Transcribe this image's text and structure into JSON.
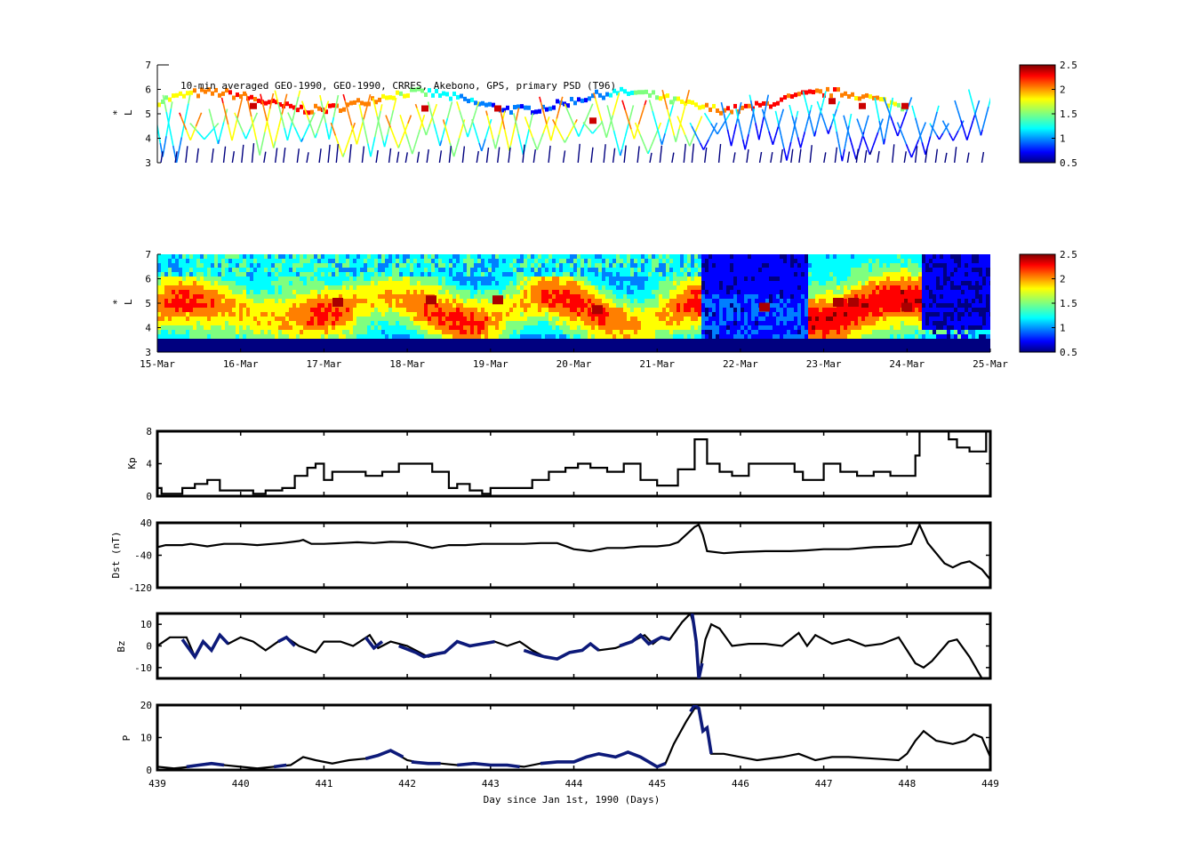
{
  "figure": {
    "title": "10-min averaged GEO-1990, GEO-1990, CRRES, Akebono, GPS, primary PSD (T96)",
    "xlabel": "Day since Jan 1st, 1990 (Days)"
  },
  "colors": {
    "axis": "#000000",
    "trace": "#000000",
    "highlight": "#0d1a7a",
    "colormap": [
      "#00007f",
      "#0000ff",
      "#007fff",
      "#00ffff",
      "#7fff7f",
      "#ffff00",
      "#ff7f00",
      "#ff0000",
      "#7f0000"
    ]
  },
  "colorbar": {
    "min": 0.5,
    "max": 2.5,
    "ticks": [
      "2.5",
      "2",
      "1.5",
      "1",
      "0.5"
    ]
  },
  "chart_data": [
    {
      "id": "psd-obs",
      "type": "heatmap",
      "title": "10-min averaged GEO-1990, GEO-1990, CRRES, Akebono, GPS, primary PSD (T96)",
      "ylabel": "L*",
      "ylabel_main": "L",
      "ylabel_sup": "*",
      "ylim": [
        3,
        7
      ],
      "yticks": [
        "7",
        "6",
        "5",
        "4",
        "3"
      ],
      "note": "sparse satellite-track observations of PSD, color scale 0.5-2.5"
    },
    {
      "id": "psd-assim",
      "type": "heatmap",
      "ylabel": "L*",
      "ylabel_main": "L",
      "ylabel_sup": "*",
      "ylim": [
        3,
        7
      ],
      "yticks": [
        "7",
        "6",
        "5",
        "4",
        "3"
      ],
      "xticks": [
        "15-Mar",
        "16-Mar",
        "17-Mar",
        "18-Mar",
        "19-Mar",
        "20-Mar",
        "21-Mar",
        "22-Mar",
        "23-Mar",
        "24-Mar",
        "25-Mar"
      ],
      "note": "full PSD map, color scale 0.5-2.5"
    },
    {
      "id": "kp",
      "type": "line",
      "ylabel": "Kp",
      "ylim": [
        0,
        8
      ],
      "yticks": [
        "8",
        "4",
        "0"
      ],
      "xlim": [
        439,
        449
      ],
      "series": [
        {
          "x": [
            439.0,
            439.05,
            439.15,
            439.3,
            439.45,
            439.6,
            439.75,
            440.0,
            440.15,
            440.3,
            440.5,
            440.65,
            440.8,
            440.9,
            441.0,
            441.1,
            441.3,
            441.5,
            441.7,
            441.9,
            442.1,
            442.3,
            442.5,
            442.6,
            442.75,
            442.9,
            443.0,
            443.1,
            443.3,
            443.5,
            443.7,
            443.9,
            444.05,
            444.2,
            444.4,
            444.6,
            444.8,
            445.0,
            445.1,
            445.25,
            445.45,
            445.6,
            445.75,
            445.9,
            446.1,
            446.3,
            446.5,
            446.65,
            446.75,
            446.85,
            447.0,
            447.2,
            447.4,
            447.6,
            447.8,
            448.0,
            448.1,
            448.15,
            448.35,
            448.5,
            448.6,
            448.75,
            448.85,
            448.95,
            449.0
          ],
          "y": [
            1,
            0.3,
            0.3,
            1,
            1.5,
            2,
            0.7,
            0.7,
            0.3,
            0.7,
            1,
            2.5,
            3.5,
            4,
            2,
            3,
            3,
            2.5,
            3,
            4,
            4,
            3,
            1,
            1.5,
            0.7,
            0.3,
            1,
            1,
            1,
            2,
            3,
            3.5,
            4,
            3.5,
            3,
            4,
            2,
            1.3,
            1.3,
            3.3,
            7,
            4,
            3,
            2.5,
            4,
            4,
            4,
            3,
            2,
            2,
            4,
            3,
            2.5,
            3,
            2.5,
            2.5,
            5,
            8,
            8,
            7,
            6,
            5.5,
            5.5,
            8,
            8
          ]
        }
      ]
    },
    {
      "id": "dst",
      "type": "line",
      "ylabel": "Dst (nT)",
      "ylim": [
        -120,
        40
      ],
      "yticks": [
        "40",
        "-40",
        "-120"
      ],
      "xlim": [
        439,
        449
      ],
      "series": [
        {
          "x": [
            439.0,
            439.1,
            439.3,
            439.4,
            439.6,
            439.8,
            440.0,
            440.2,
            440.5,
            440.7,
            440.75,
            440.85,
            441.0,
            441.2,
            441.4,
            441.6,
            441.8,
            442.0,
            442.1,
            442.3,
            442.5,
            442.7,
            442.9,
            443.1,
            443.4,
            443.6,
            443.8,
            444.0,
            444.2,
            444.4,
            444.6,
            444.8,
            445.0,
            445.15,
            445.25,
            445.45,
            445.5,
            445.55,
            445.6,
            445.8,
            446.0,
            446.3,
            446.6,
            446.8,
            447.0,
            447.3,
            447.6,
            447.9,
            448.05,
            448.15,
            448.25,
            448.45,
            448.55,
            448.65,
            448.75,
            448.9,
            449.0
          ],
          "y": [
            -20,
            -15,
            -15,
            -12,
            -18,
            -12,
            -12,
            -15,
            -10,
            -5,
            -2,
            -12,
            -12,
            -10,
            -8,
            -10,
            -7,
            -8,
            -12,
            -22,
            -15,
            -15,
            -12,
            -12,
            -12,
            -10,
            -10,
            -25,
            -30,
            -22,
            -22,
            -18,
            -18,
            -15,
            -8,
            30,
            35,
            10,
            -30,
            -35,
            -32,
            -30,
            -30,
            -28,
            -25,
            -25,
            -20,
            -18,
            -12,
            35,
            -10,
            -60,
            -70,
            -60,
            -55,
            -75,
            -100
          ]
        }
      ]
    },
    {
      "id": "bz",
      "type": "line",
      "ylabel": "Bz",
      "ylim": [
        -15,
        15
      ],
      "yticks": [
        "10",
        "0",
        "-10"
      ],
      "xlim": [
        439,
        449
      ],
      "series": [
        {
          "x": [
            439.0,
            439.15,
            439.35,
            439.45,
            439.55,
            439.65,
            439.75,
            439.85,
            440.0,
            440.15,
            440.3,
            440.45,
            440.55,
            440.7,
            440.9,
            441.0,
            441.2,
            441.35,
            441.55,
            441.65,
            441.8,
            442.0,
            442.15,
            442.25,
            442.45,
            442.6,
            442.75,
            442.9,
            443.05,
            443.2,
            443.35,
            443.5,
            443.65,
            443.8,
            443.95,
            444.1,
            444.2,
            444.3,
            444.5,
            444.7,
            444.85,
            444.95,
            445.05,
            445.15,
            445.3,
            445.4,
            445.45,
            445.5,
            445.58,
            445.65,
            445.75,
            445.9,
            446.1,
            446.3,
            446.5,
            446.7,
            446.8,
            446.9,
            447.1,
            447.3,
            447.5,
            447.7,
            447.9,
            448.0,
            448.1,
            448.2,
            448.3,
            448.5,
            448.6,
            448.75,
            448.9
          ],
          "y": [
            0,
            4,
            4,
            -5,
            2,
            -2,
            5,
            1,
            4,
            2,
            -2,
            2,
            4,
            0,
            -3,
            2,
            2,
            0,
            5,
            -1,
            2,
            0,
            -3,
            -5,
            -3,
            2,
            0,
            1,
            2,
            0,
            2,
            -2,
            -5,
            -6,
            -3,
            -2,
            1,
            -2,
            -1,
            2,
            5,
            1,
            4,
            3,
            11,
            15,
            8,
            -15,
            3,
            10,
            8,
            0,
            1,
            1,
            0,
            6,
            0,
            5,
            1,
            3,
            0,
            1,
            4,
            -2,
            -8,
            -10,
            -7,
            2,
            3,
            -5,
            -15
          ]
        }
      ],
      "highlight": [
        {
          "x": [
            439.3,
            439.45,
            439.55,
            439.65,
            439.75,
            439.85
          ],
          "y": [
            3,
            -5,
            2,
            -2,
            5,
            1
          ]
        },
        {
          "x": [
            440.45,
            440.55,
            440.65
          ],
          "y": [
            2,
            4,
            0
          ]
        },
        {
          "x": [
            441.5,
            441.6,
            441.7
          ],
          "y": [
            4,
            -1,
            2
          ]
        },
        {
          "x": [
            441.9,
            442.1,
            442.2,
            442.3,
            442.45,
            442.6,
            442.75,
            442.9,
            443.05
          ],
          "y": [
            0,
            -3,
            -5,
            -4,
            -3,
            2,
            0,
            1,
            2
          ]
        },
        {
          "x": [
            443.4,
            443.55,
            443.65,
            443.8,
            443.95,
            444.1,
            444.2,
            444.3
          ],
          "y": [
            -2,
            -4,
            -5,
            -6,
            -3,
            -2,
            1,
            -2
          ]
        },
        {
          "x": [
            444.55,
            444.7,
            444.8,
            444.9,
            445.05,
            445.15
          ],
          "y": [
            0,
            2,
            5,
            1,
            4,
            3
          ]
        },
        {
          "x": [
            445.42,
            445.47,
            445.5,
            445.54
          ],
          "y": [
            15,
            2,
            -15,
            -8
          ]
        }
      ]
    },
    {
      "id": "p",
      "type": "line",
      "ylabel": "P",
      "ylim": [
        0,
        20
      ],
      "yticks": [
        "20",
        "10",
        "0"
      ],
      "xlim": [
        439,
        449
      ],
      "series": [
        {
          "x": [
            439.0,
            439.2,
            439.4,
            439.6,
            439.8,
            440.0,
            440.2,
            440.4,
            440.6,
            440.75,
            440.9,
            441.1,
            441.3,
            441.5,
            441.65,
            441.8,
            442.0,
            442.2,
            442.4,
            442.6,
            442.8,
            443.0,
            443.2,
            443.4,
            443.6,
            443.8,
            444.0,
            444.15,
            444.3,
            444.5,
            444.65,
            444.8,
            445.0,
            445.1,
            445.2,
            445.35,
            445.45,
            445.5,
            445.55,
            445.6,
            445.65,
            445.8,
            446.0,
            446.2,
            446.5,
            446.7,
            446.9,
            447.1,
            447.3,
            447.6,
            447.9,
            448.0,
            448.1,
            448.2,
            448.35,
            448.55,
            448.7,
            448.8,
            448.9,
            449.0
          ],
          "y": [
            1,
            0.5,
            1,
            2,
            1.5,
            1,
            0.5,
            1,
            1.5,
            4,
            3,
            2,
            3,
            3.5,
            4.5,
            6,
            3,
            2,
            2,
            1.5,
            2,
            1.5,
            1.5,
            1,
            2,
            2.5,
            2.5,
            4,
            5,
            4,
            5.5,
            4,
            1,
            2,
            8,
            15,
            19,
            19,
            12,
            13,
            5,
            5,
            4,
            3,
            4,
            5,
            3,
            4,
            4,
            3.5,
            3,
            5,
            9,
            12,
            9,
            8,
            9,
            11,
            10,
            4
          ]
        }
      ],
      "highlight": [
        {
          "x": [
            439.35,
            439.5,
            439.65,
            439.8
          ],
          "y": [
            1,
            1.5,
            2,
            1.5
          ]
        },
        {
          "x": [
            440.4,
            440.55
          ],
          "y": [
            1,
            1.5
          ]
        },
        {
          "x": [
            441.5,
            441.65,
            441.8,
            441.95
          ],
          "y": [
            3.5,
            4.5,
            6,
            4
          ]
        },
        {
          "x": [
            442.05,
            442.25,
            442.4
          ],
          "y": [
            2.5,
            2,
            2
          ]
        },
        {
          "x": [
            442.6,
            442.8,
            443.0,
            443.2,
            443.35
          ],
          "y": [
            1.5,
            2,
            1.5,
            1.5,
            1
          ]
        },
        {
          "x": [
            443.6,
            443.8,
            444.0,
            444.15,
            444.3,
            444.5,
            444.65,
            444.8,
            445.0,
            445.1
          ],
          "y": [
            2,
            2.5,
            2.5,
            4,
            5,
            4,
            5.5,
            4,
            1,
            2
          ]
        },
        {
          "x": [
            445.4,
            445.45,
            445.5,
            445.55,
            445.6,
            445.65
          ],
          "y": [
            18,
            20,
            19,
            12,
            13,
            5
          ]
        }
      ]
    }
  ],
  "bottom_xticks": [
    "439",
    "440",
    "441",
    "442",
    "443",
    "444",
    "445",
    "446",
    "447",
    "448",
    "449"
  ]
}
